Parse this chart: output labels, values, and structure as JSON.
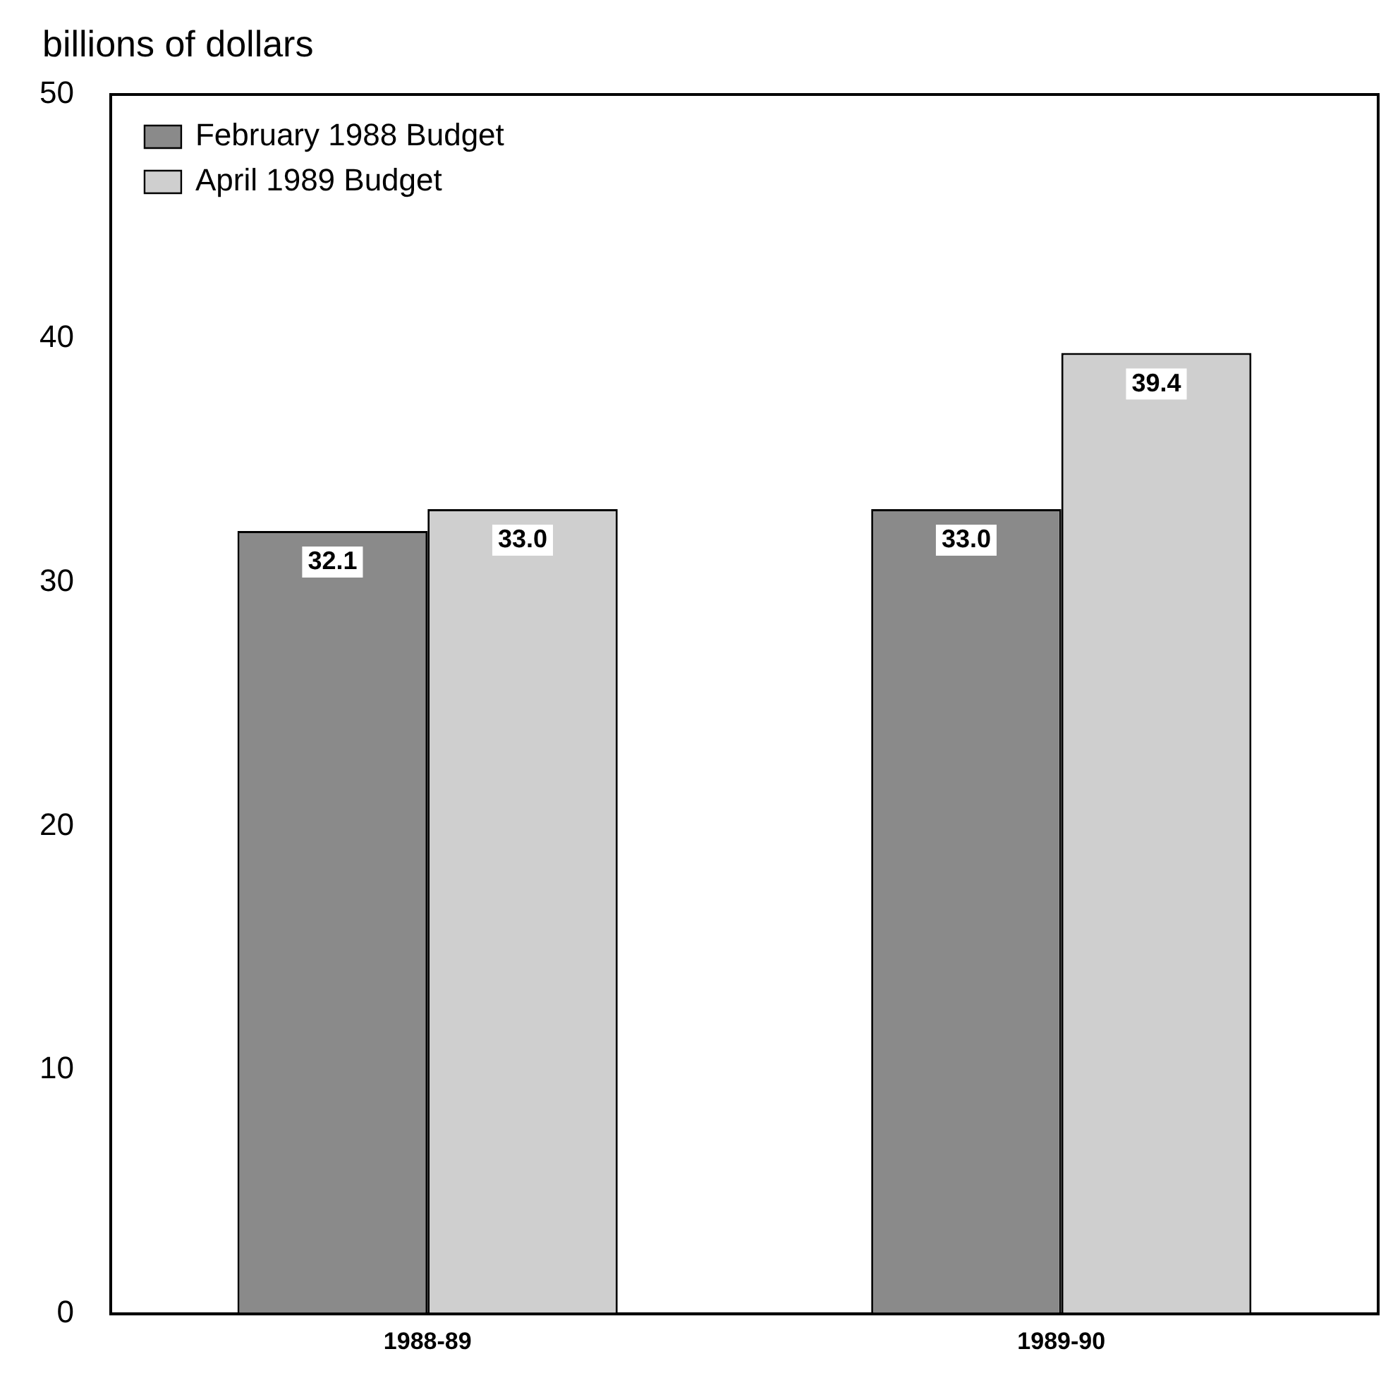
{
  "chart_data": {
    "type": "bar",
    "ylabel": "billions of dollars",
    "categories": [
      "1988-89",
      "1989-90"
    ],
    "series": [
      {
        "name": "February 1988 Budget",
        "color": "#8a8a8a",
        "values": [
          32.1,
          33.0
        ],
        "value_labels": [
          "32.1",
          "33.0"
        ]
      },
      {
        "name": "April 1989 Budget",
        "color": "#cfcfcf",
        "values": [
          33.0,
          39.4
        ],
        "value_labels": [
          "33.0",
          "39.4"
        ]
      }
    ],
    "ylim": [
      0,
      50
    ],
    "yticks": [
      0,
      10,
      20,
      30,
      40,
      50
    ],
    "grid": false,
    "legend": "top left"
  }
}
